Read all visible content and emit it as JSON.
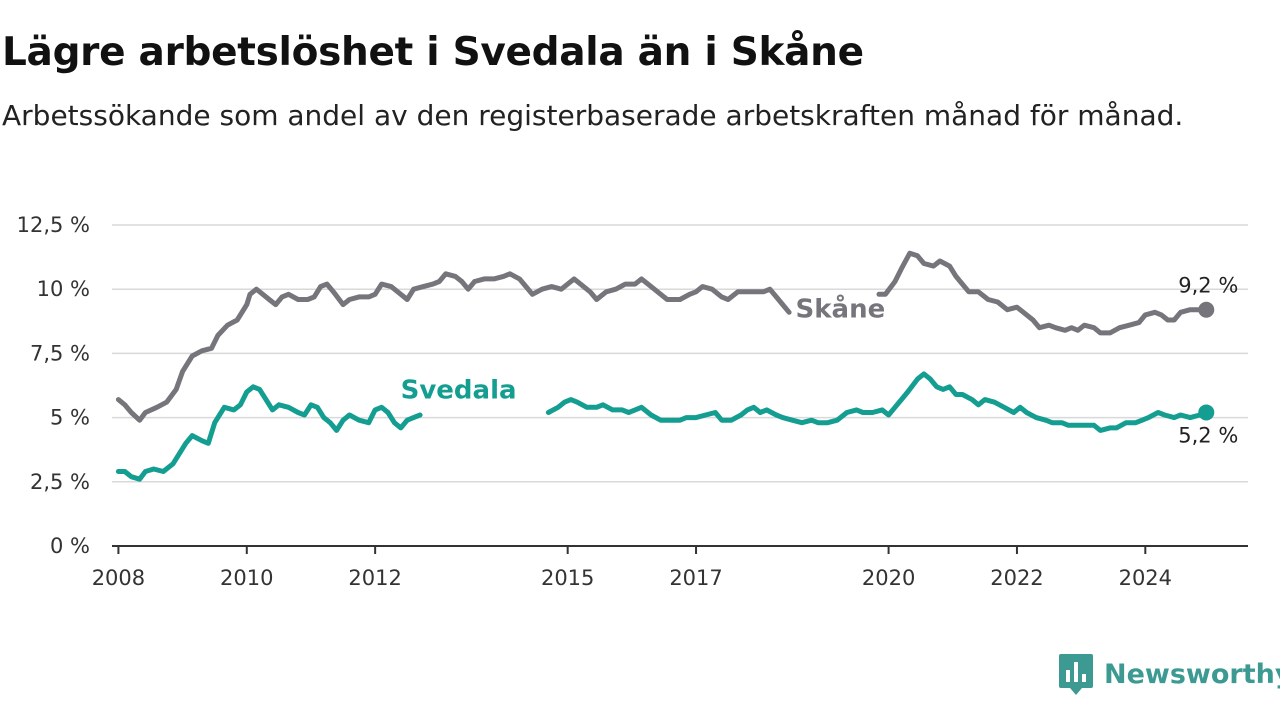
{
  "title": "Lägre arbetslöshet i Svedala än i Skåne",
  "subtitle": "Arbetssökande som andel av den registerbaserade arbetskraften månad för månad.",
  "brand": {
    "name": "Newsworthy",
    "icon": "newsworthy-logo-icon",
    "color": "#3d9a92"
  },
  "chart_data": {
    "type": "line",
    "x_unit": "year (decimal)",
    "xlim": [
      2007.9,
      2025.6
    ],
    "ylim": [
      0,
      12.5
    ],
    "y_ticks": [
      {
        "value": 0,
        "label": "0 %"
      },
      {
        "value": 2.5,
        "label": "2,5 %"
      },
      {
        "value": 5,
        "label": "5 %"
      },
      {
        "value": 7.5,
        "label": "7,5 %"
      },
      {
        "value": 10,
        "label": "10 %"
      },
      {
        "value": 12.5,
        "label": "12,5 %"
      }
    ],
    "x_ticks": [
      {
        "value": 2008,
        "label": "2008"
      },
      {
        "value": 2010,
        "label": "2010"
      },
      {
        "value": 2012,
        "label": "2012"
      },
      {
        "value": 2015,
        "label": "2015"
      },
      {
        "value": 2017,
        "label": "2017"
      },
      {
        "value": 2020,
        "label": "2020"
      },
      {
        "value": 2022,
        "label": "2022"
      },
      {
        "value": 2024,
        "label": "2024"
      }
    ],
    "grid": true,
    "series": [
      {
        "name": "Skåne",
        "color": "#76757b",
        "end_label": "9,2 %",
        "points": [
          [
            2008.0,
            5.7
          ],
          [
            2008.1,
            5.5
          ],
          [
            2008.2,
            5.2
          ],
          [
            2008.33,
            4.9
          ],
          [
            2008.42,
            5.2
          ],
          [
            2008.6,
            5.4
          ],
          [
            2008.75,
            5.6
          ],
          [
            2008.9,
            6.1
          ],
          [
            2009.0,
            6.8
          ],
          [
            2009.15,
            7.4
          ],
          [
            2009.3,
            7.6
          ],
          [
            2009.45,
            7.7
          ],
          [
            2009.55,
            8.2
          ],
          [
            2009.7,
            8.6
          ],
          [
            2009.85,
            8.8
          ],
          [
            2010.0,
            9.4
          ],
          [
            2010.05,
            9.8
          ],
          [
            2010.15,
            10.0
          ],
          [
            2010.25,
            9.8
          ],
          [
            2010.35,
            9.6
          ],
          [
            2010.45,
            9.4
          ],
          [
            2010.55,
            9.7
          ],
          [
            2010.65,
            9.8
          ],
          [
            2010.8,
            9.6
          ],
          [
            2010.95,
            9.6
          ],
          [
            2011.05,
            9.7
          ],
          [
            2011.15,
            10.1
          ],
          [
            2011.25,
            10.2
          ],
          [
            2011.35,
            9.9
          ],
          [
            2011.5,
            9.4
          ],
          [
            2011.6,
            9.6
          ],
          [
            2011.75,
            9.7
          ],
          [
            2011.9,
            9.7
          ],
          [
            2012.0,
            9.8
          ],
          [
            2012.1,
            10.2
          ],
          [
            2012.25,
            10.1
          ],
          [
            2012.4,
            9.8
          ],
          [
            2012.5,
            9.6
          ],
          [
            2012.6,
            10.0
          ],
          [
            2012.75,
            10.1
          ],
          [
            2012.9,
            10.2
          ],
          [
            2013.0,
            10.3
          ],
          [
            2013.1,
            10.6
          ],
          [
            2013.25,
            10.5
          ],
          [
            2013.35,
            10.3
          ],
          [
            2013.45,
            10.0
          ],
          [
            2013.55,
            10.3
          ],
          [
            2013.7,
            10.4
          ],
          [
            2013.85,
            10.4
          ],
          [
            2014.0,
            10.5
          ],
          [
            2014.1,
            10.6
          ],
          [
            2014.25,
            10.4
          ],
          [
            2014.35,
            10.1
          ],
          [
            2014.45,
            9.8
          ],
          [
            2014.6,
            10.0
          ],
          [
            2014.75,
            10.1
          ],
          [
            2014.9,
            10.0
          ],
          [
            2015.0,
            10.2
          ],
          [
            2015.1,
            10.4
          ],
          [
            2015.2,
            10.2
          ],
          [
            2015.35,
            9.9
          ],
          [
            2015.45,
            9.6
          ],
          [
            2015.6,
            9.9
          ],
          [
            2015.75,
            10.0
          ],
          [
            2015.9,
            10.2
          ],
          [
            2016.05,
            10.2
          ],
          [
            2016.15,
            10.4
          ],
          [
            2016.3,
            10.1
          ],
          [
            2016.45,
            9.8
          ],
          [
            2016.55,
            9.6
          ],
          [
            2016.75,
            9.6
          ],
          [
            2016.9,
            9.8
          ],
          [
            2017.0,
            9.9
          ],
          [
            2017.1,
            10.1
          ],
          [
            2017.25,
            10.0
          ],
          [
            2017.4,
            9.7
          ],
          [
            2017.5,
            9.6
          ],
          [
            2017.65,
            9.9
          ],
          [
            2017.8,
            9.9
          ],
          [
            2017.95,
            9.9
          ],
          [
            2018.05,
            9.9
          ],
          [
            2018.15,
            10.0
          ],
          [
            2018.25,
            9.7
          ],
          [
            2018.35,
            9.4
          ],
          [
            2018.45,
            9.1
          ],
          [
            2019.85,
            9.8
          ],
          [
            2019.95,
            9.8
          ],
          [
            2020.1,
            10.3
          ],
          [
            2020.2,
            10.8
          ],
          [
            2020.33,
            11.4
          ],
          [
            2020.45,
            11.3
          ],
          [
            2020.55,
            11.0
          ],
          [
            2020.7,
            10.9
          ],
          [
            2020.8,
            11.1
          ],
          [
            2020.95,
            10.9
          ],
          [
            2021.05,
            10.5
          ],
          [
            2021.15,
            10.2
          ],
          [
            2021.25,
            9.9
          ],
          [
            2021.4,
            9.9
          ],
          [
            2021.55,
            9.6
          ],
          [
            2021.7,
            9.5
          ],
          [
            2021.85,
            9.2
          ],
          [
            2022.0,
            9.3
          ],
          [
            2022.1,
            9.1
          ],
          [
            2022.25,
            8.8
          ],
          [
            2022.35,
            8.5
          ],
          [
            2022.5,
            8.6
          ],
          [
            2022.6,
            8.5
          ],
          [
            2022.75,
            8.4
          ],
          [
            2022.85,
            8.5
          ],
          [
            2022.95,
            8.4
          ],
          [
            2023.05,
            8.6
          ],
          [
            2023.2,
            8.5
          ],
          [
            2023.3,
            8.3
          ],
          [
            2023.45,
            8.3
          ],
          [
            2023.6,
            8.5
          ],
          [
            2023.75,
            8.6
          ],
          [
            2023.9,
            8.7
          ],
          [
            2024.0,
            9.0
          ],
          [
            2024.15,
            9.1
          ],
          [
            2024.25,
            9.0
          ],
          [
            2024.35,
            8.8
          ],
          [
            2024.45,
            8.8
          ],
          [
            2024.55,
            9.1
          ],
          [
            2024.7,
            9.2
          ],
          [
            2024.85,
            9.2
          ],
          [
            2024.95,
            9.2
          ]
        ]
      },
      {
        "name": "Svedala",
        "color": "#149d91",
        "end_label": "5,2 %",
        "points": [
          [
            2008.0,
            2.9
          ],
          [
            2008.1,
            2.9
          ],
          [
            2008.2,
            2.7
          ],
          [
            2008.33,
            2.6
          ],
          [
            2008.42,
            2.9
          ],
          [
            2008.55,
            3.0
          ],
          [
            2008.7,
            2.9
          ],
          [
            2008.85,
            3.2
          ],
          [
            2008.95,
            3.6
          ],
          [
            2009.05,
            4.0
          ],
          [
            2009.15,
            4.3
          ],
          [
            2009.3,
            4.1
          ],
          [
            2009.4,
            4.0
          ],
          [
            2009.5,
            4.8
          ],
          [
            2009.65,
            5.4
          ],
          [
            2009.8,
            5.3
          ],
          [
            2009.9,
            5.5
          ],
          [
            2010.0,
            6.0
          ],
          [
            2010.1,
            6.2
          ],
          [
            2010.2,
            6.1
          ],
          [
            2010.3,
            5.7
          ],
          [
            2010.4,
            5.3
          ],
          [
            2010.5,
            5.5
          ],
          [
            2010.65,
            5.4
          ],
          [
            2010.8,
            5.2
          ],
          [
            2010.9,
            5.1
          ],
          [
            2011.0,
            5.5
          ],
          [
            2011.1,
            5.4
          ],
          [
            2011.2,
            5.0
          ],
          [
            2011.3,
            4.8
          ],
          [
            2011.4,
            4.5
          ],
          [
            2011.5,
            4.9
          ],
          [
            2011.6,
            5.1
          ],
          [
            2011.75,
            4.9
          ],
          [
            2011.9,
            4.8
          ],
          [
            2012.0,
            5.3
          ],
          [
            2012.1,
            5.4
          ],
          [
            2012.2,
            5.2
          ],
          [
            2012.3,
            4.8
          ],
          [
            2012.4,
            4.6
          ],
          [
            2012.5,
            4.9
          ],
          [
            2012.6,
            5.0
          ],
          [
            2012.7,
            5.1
          ],
          [
            2014.7,
            5.2
          ],
          [
            2014.85,
            5.4
          ],
          [
            2014.95,
            5.6
          ],
          [
            2015.05,
            5.7
          ],
          [
            2015.15,
            5.6
          ],
          [
            2015.3,
            5.4
          ],
          [
            2015.45,
            5.4
          ],
          [
            2015.55,
            5.5
          ],
          [
            2015.7,
            5.3
          ],
          [
            2015.85,
            5.3
          ],
          [
            2015.95,
            5.2
          ],
          [
            2016.05,
            5.3
          ],
          [
            2016.15,
            5.4
          ],
          [
            2016.3,
            5.1
          ],
          [
            2016.45,
            4.9
          ],
          [
            2016.6,
            4.9
          ],
          [
            2016.75,
            4.9
          ],
          [
            2016.85,
            5.0
          ],
          [
            2017.0,
            5.0
          ],
          [
            2017.15,
            5.1
          ],
          [
            2017.3,
            5.2
          ],
          [
            2017.4,
            4.9
          ],
          [
            2017.55,
            4.9
          ],
          [
            2017.7,
            5.1
          ],
          [
            2017.8,
            5.3
          ],
          [
            2017.9,
            5.4
          ],
          [
            2018.0,
            5.2
          ],
          [
            2018.1,
            5.3
          ],
          [
            2018.25,
            5.1
          ],
          [
            2018.35,
            5.0
          ],
          [
            2018.5,
            4.9
          ],
          [
            2018.65,
            4.8
          ],
          [
            2018.8,
            4.9
          ],
          [
            2018.9,
            4.8
          ],
          [
            2019.05,
            4.8
          ],
          [
            2019.2,
            4.9
          ],
          [
            2019.35,
            5.2
          ],
          [
            2019.5,
            5.3
          ],
          [
            2019.6,
            5.2
          ],
          [
            2019.75,
            5.2
          ],
          [
            2019.9,
            5.3
          ],
          [
            2020.0,
            5.1
          ],
          [
            2020.1,
            5.4
          ],
          [
            2020.2,
            5.7
          ],
          [
            2020.3,
            6.0
          ],
          [
            2020.45,
            6.5
          ],
          [
            2020.55,
            6.7
          ],
          [
            2020.65,
            6.5
          ],
          [
            2020.75,
            6.2
          ],
          [
            2020.85,
            6.1
          ],
          [
            2020.95,
            6.2
          ],
          [
            2021.05,
            5.9
          ],
          [
            2021.15,
            5.9
          ],
          [
            2021.3,
            5.7
          ],
          [
            2021.4,
            5.5
          ],
          [
            2021.5,
            5.7
          ],
          [
            2021.65,
            5.6
          ],
          [
            2021.8,
            5.4
          ],
          [
            2021.95,
            5.2
          ],
          [
            2022.05,
            5.4
          ],
          [
            2022.15,
            5.2
          ],
          [
            2022.3,
            5.0
          ],
          [
            2022.45,
            4.9
          ],
          [
            2022.55,
            4.8
          ],
          [
            2022.7,
            4.8
          ],
          [
            2022.8,
            4.7
          ],
          [
            2022.95,
            4.7
          ],
          [
            2023.05,
            4.7
          ],
          [
            2023.2,
            4.7
          ],
          [
            2023.3,
            4.5
          ],
          [
            2023.45,
            4.6
          ],
          [
            2023.55,
            4.6
          ],
          [
            2023.7,
            4.8
          ],
          [
            2023.85,
            4.8
          ],
          [
            2023.95,
            4.9
          ],
          [
            2024.05,
            5.0
          ],
          [
            2024.2,
            5.2
          ],
          [
            2024.3,
            5.1
          ],
          [
            2024.45,
            5.0
          ],
          [
            2024.55,
            5.1
          ],
          [
            2024.7,
            5.0
          ],
          [
            2024.85,
            5.1
          ],
          [
            2024.95,
            5.2
          ]
        ]
      }
    ]
  }
}
